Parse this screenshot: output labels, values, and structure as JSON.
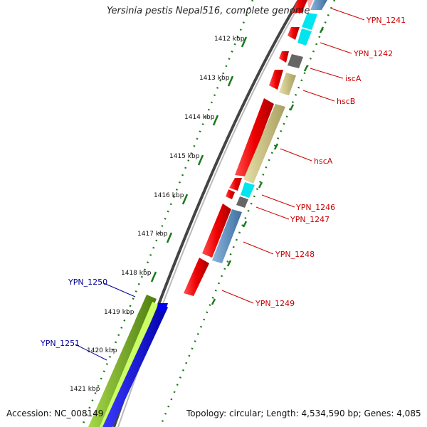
{
  "title": "Yersinia pestis Nepal516, complete genome",
  "footer": {
    "accession": "Accession: NC_008149",
    "topology": "Topology: circular; Length: 4,534,590 bp; Genes: 4,085"
  },
  "ticks": [
    "1412 kbp",
    "1413 kbp",
    "1414 kbp",
    "1415 kbp",
    "1416 kbp",
    "1417 kbp",
    "1418 kbp",
    "1419 kbp",
    "1420 kbp",
    "1421 kbp"
  ],
  "genes_right": [
    "YPN_1241",
    "YPN_1242",
    "iscA",
    "hscB",
    "hscA",
    "YPN_1246",
    "YPN_1247",
    "YPN_1248",
    "YPN_1249"
  ],
  "genes_left": [
    "YPN_1250",
    "YPN_1251"
  ],
  "colors": {
    "red": "#ee0000",
    "cyan": "#00e5ee",
    "gray": "#666666",
    "khaki": "#c8c080",
    "steelblue": "#5a8fc0",
    "green": "#78b020",
    "lightgreen": "#ccff66",
    "blue": "#0000ee",
    "backbone": "#888888",
    "tickmark": "#1a7a1a",
    "label_red": "#cc0000",
    "label_blue": "#000099"
  }
}
